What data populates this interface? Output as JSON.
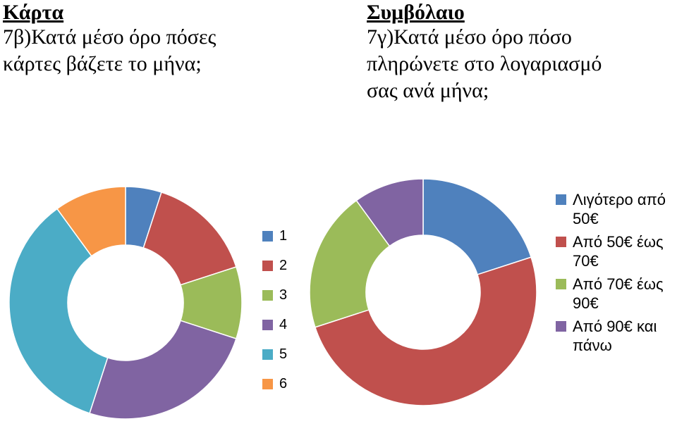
{
  "left": {
    "category": "Κάρτα",
    "question_line1": "7β)Κατά μέσο όρο πόσες",
    "question_line2": "κάρτες βάζετε το μήνα;"
  },
  "right": {
    "category": "Συμβόλαιο",
    "question_line1": "7γ)Κατά μέσο όρο πόσο",
    "question_line2": "πληρώνετε στο λογαριασμό",
    "question_line3": "σας ανά μήνα;"
  },
  "chart_data": [
    {
      "type": "pie",
      "variant": "doughnut",
      "title": "",
      "categories": [
        "1",
        "2",
        "3",
        "4",
        "5",
        "6"
      ],
      "values": [
        5,
        15,
        10,
        25,
        35,
        10
      ],
      "colors": [
        "#4F81BD",
        "#C0504D",
        "#9BBB59",
        "#8064A2",
        "#4BACC6",
        "#F79646"
      ],
      "legend_position": "right"
    },
    {
      "type": "pie",
      "variant": "doughnut",
      "title": "",
      "categories": [
        "Λιγότερο από 50€",
        "Από 50€ έως 70€",
        "Από 70€ έως 90€",
        "Από 90€ και πάνω"
      ],
      "legend_lines": [
        [
          "Λιγότερο από",
          "50€"
        ],
        [
          "Από 50€ έως",
          "70€"
        ],
        [
          "Από 70€ έως",
          "90€"
        ],
        [
          "Από 90€ και",
          "πάνω"
        ]
      ],
      "values": [
        20,
        50,
        20,
        10
      ],
      "colors": [
        "#4F81BD",
        "#C0504D",
        "#9BBB59",
        "#8064A2"
      ],
      "legend_position": "right"
    }
  ]
}
